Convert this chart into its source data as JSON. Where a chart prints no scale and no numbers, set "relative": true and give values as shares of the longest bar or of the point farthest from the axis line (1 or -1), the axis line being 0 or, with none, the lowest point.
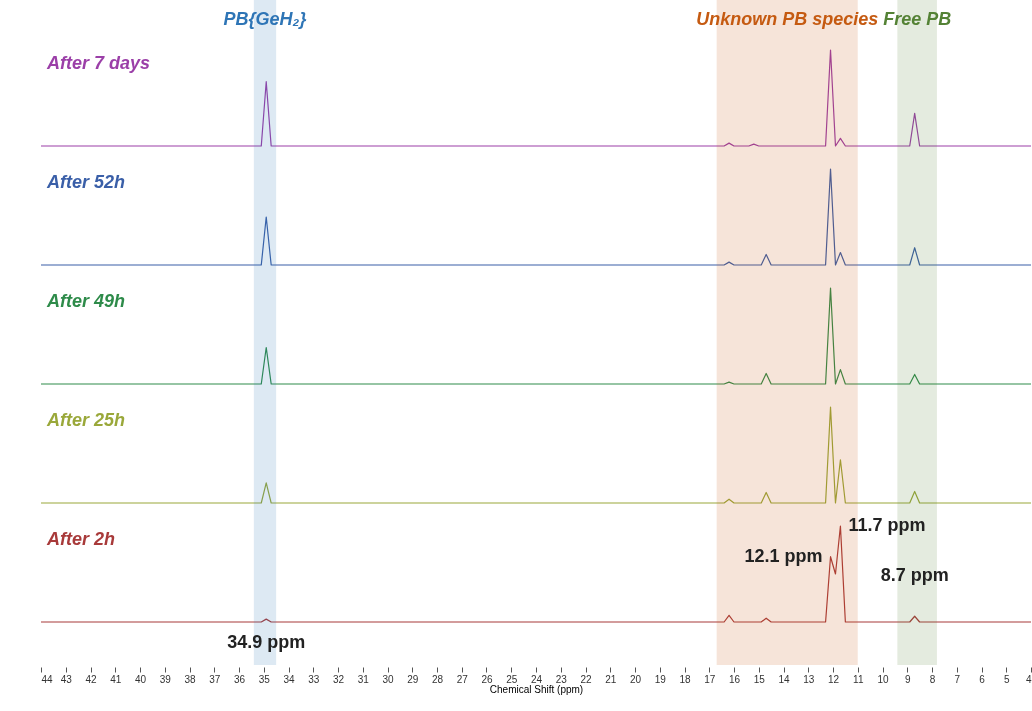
{
  "chart_data": [
    {
      "type": "line",
      "relative": true,
      "tick_labels": false,
      "xlim": [
        44,
        4
      ],
      "x": [
        44,
        35.1,
        34.9,
        34.7,
        16.4,
        16.2,
        16.0,
        15.4,
        15.2,
        15.0,
        12.3,
        12.1,
        11.9,
        11.7,
        11.5,
        8.9,
        8.7,
        8.5,
        4
      ],
      "series": [
        {
          "name": "After 7 days",
          "color": "#9b3fa8",
          "values": [
            0,
            0,
            0.67,
            0,
            0,
            0.03,
            0,
            0,
            0.02,
            0,
            0,
            1,
            0,
            0.08,
            0,
            0,
            0.34,
            0,
            0
          ]
        }
      ]
    },
    {
      "type": "line",
      "relative": true,
      "tick_labels": false,
      "xlim": [
        44,
        4
      ],
      "x": [
        44,
        35.1,
        34.9,
        34.7,
        16.4,
        16.2,
        16.0,
        14.9,
        14.7,
        14.5,
        12.3,
        12.1,
        11.9,
        11.7,
        11.5,
        8.9,
        8.7,
        8.5,
        4
      ],
      "series": [
        {
          "name": "After 52h",
          "color": "#3a5fa8",
          "values": [
            0,
            0,
            0.5,
            0,
            0,
            0.03,
            0,
            0,
            0.11,
            0,
            0,
            1,
            0,
            0.13,
            0,
            0,
            0.18,
            0,
            0
          ]
        }
      ]
    },
    {
      "type": "line",
      "relative": true,
      "tick_labels": false,
      "xlim": [
        44,
        4
      ],
      "x": [
        44,
        35.1,
        34.9,
        34.7,
        16.4,
        16.2,
        16.0,
        14.9,
        14.7,
        14.5,
        12.3,
        12.1,
        11.9,
        11.7,
        11.5,
        8.9,
        8.7,
        8.5,
        4
      ],
      "series": [
        {
          "name": "After 49h",
          "color": "#2e8b4a",
          "values": [
            0,
            0,
            0.38,
            0,
            0,
            0.02,
            0,
            0,
            0.11,
            0,
            0,
            1,
            0,
            0.15,
            0,
            0,
            0.1,
            0,
            0
          ]
        }
      ]
    },
    {
      "type": "line",
      "relative": true,
      "tick_labels": false,
      "xlim": [
        44,
        4
      ],
      "x": [
        44,
        35.1,
        34.9,
        34.7,
        16.4,
        16.2,
        16.0,
        14.9,
        14.7,
        14.5,
        12.3,
        12.1,
        11.9,
        11.7,
        11.5,
        8.9,
        8.7,
        8.5,
        4
      ],
      "series": [
        {
          "name": "After 25h",
          "color": "#9aa83a",
          "values": [
            0,
            0,
            0.21,
            0,
            0,
            0.04,
            0,
            0,
            0.11,
            0,
            0,
            1,
            0,
            0.45,
            0,
            0,
            0.12,
            0,
            0
          ]
        }
      ]
    },
    {
      "type": "line",
      "relative": true,
      "tick_labels": "x",
      "xlim": [
        44,
        4
      ],
      "xticks": [
        44,
        43,
        42,
        41,
        40,
        39,
        38,
        37,
        36,
        35,
        34,
        33,
        32,
        31,
        30,
        29,
        28,
        27,
        26,
        25,
        24,
        23,
        22,
        21,
        20,
        19,
        18,
        17,
        16,
        15,
        14,
        13,
        12,
        11,
        10,
        9,
        8,
        7,
        6,
        5,
        4
      ],
      "xlabel": "Chemical Shift (ppm)",
      "x": [
        44,
        35.1,
        34.9,
        34.7,
        16.4,
        16.2,
        16.0,
        14.9,
        14.7,
        14.5,
        12.3,
        12.1,
        11.9,
        11.7,
        11.5,
        8.9,
        8.7,
        8.5,
        4
      ],
      "series": [
        {
          "name": "After 2h",
          "color": "#a83a3a",
          "values": [
            0,
            0,
            0.03,
            0,
            0,
            0.07,
            0,
            0,
            0.04,
            0,
            0,
            0.68,
            0.5,
            1,
            0,
            0,
            0.06,
            0,
            0
          ]
        }
      ],
      "bands": [
        {
          "axis": "x",
          "from": 35.4,
          "to": 34.5,
          "label": "PB{GeH₂}",
          "color": "#2e75b6"
        },
        {
          "axis": "x",
          "from": 16.7,
          "to": 11.0,
          "label": "Unknown PB species",
          "color": "#c55a11"
        },
        {
          "axis": "x",
          "from": 9.4,
          "to": 7.8,
          "label": "Free PB",
          "color": "#548235"
        }
      ],
      "annotations": [
        {
          "text": "34.9 ppm",
          "x": 34.9,
          "y": 0.03
        },
        {
          "text": "12.1 ppm",
          "x": 12.1,
          "y": 0.68
        },
        {
          "text": "11.7 ppm",
          "x": 11.7,
          "y": 1
        },
        {
          "text": "8.7 ppm",
          "x": 8.7,
          "y": 0.06
        }
      ]
    }
  ]
}
